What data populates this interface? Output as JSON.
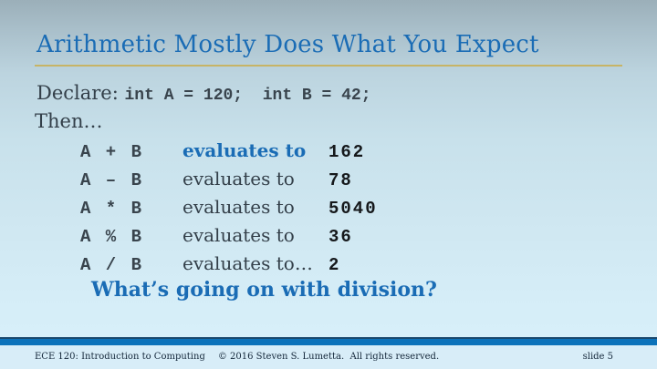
{
  "slide": {
    "title": "Arithmetic Mostly Does What You Expect",
    "declare_label": "Declare: ",
    "declare_code": "int A = 120;  int B = 42;",
    "then_label": "Then…",
    "rows": [
      {
        "expr": "A + B",
        "mid": "evaluates to",
        "result": "162"
      },
      {
        "expr": "A – B",
        "mid": "evaluates to",
        "result": "78"
      },
      {
        "expr": "A * B",
        "mid": "evaluates to",
        "result": "5040"
      },
      {
        "expr": "A % B",
        "mid": "evaluates to",
        "result": "36"
      },
      {
        "expr": "A / B",
        "mid": "evaluates to…",
        "result": "2"
      }
    ],
    "question": "What’s going on with division?",
    "footer": {
      "left": "ECE 120: Introduction to Computing",
      "center": "© 2016 Steven S. Lumetta.  All rights reserved.",
      "right": "slide 5"
    },
    "colors": {
      "accent_blue": "#1a6cb5",
      "gold_rule": "#c7b466",
      "body_text": "#333f49",
      "expression_text": "#39444d",
      "result_text": "#15181b",
      "footer_navy_line": "#18486e",
      "footer_blue_bar": "#0c72ba",
      "footer_background": "#d8edf8",
      "background_top": "#9bafb9",
      "background_bottom": "#d9f1fb"
    }
  }
}
